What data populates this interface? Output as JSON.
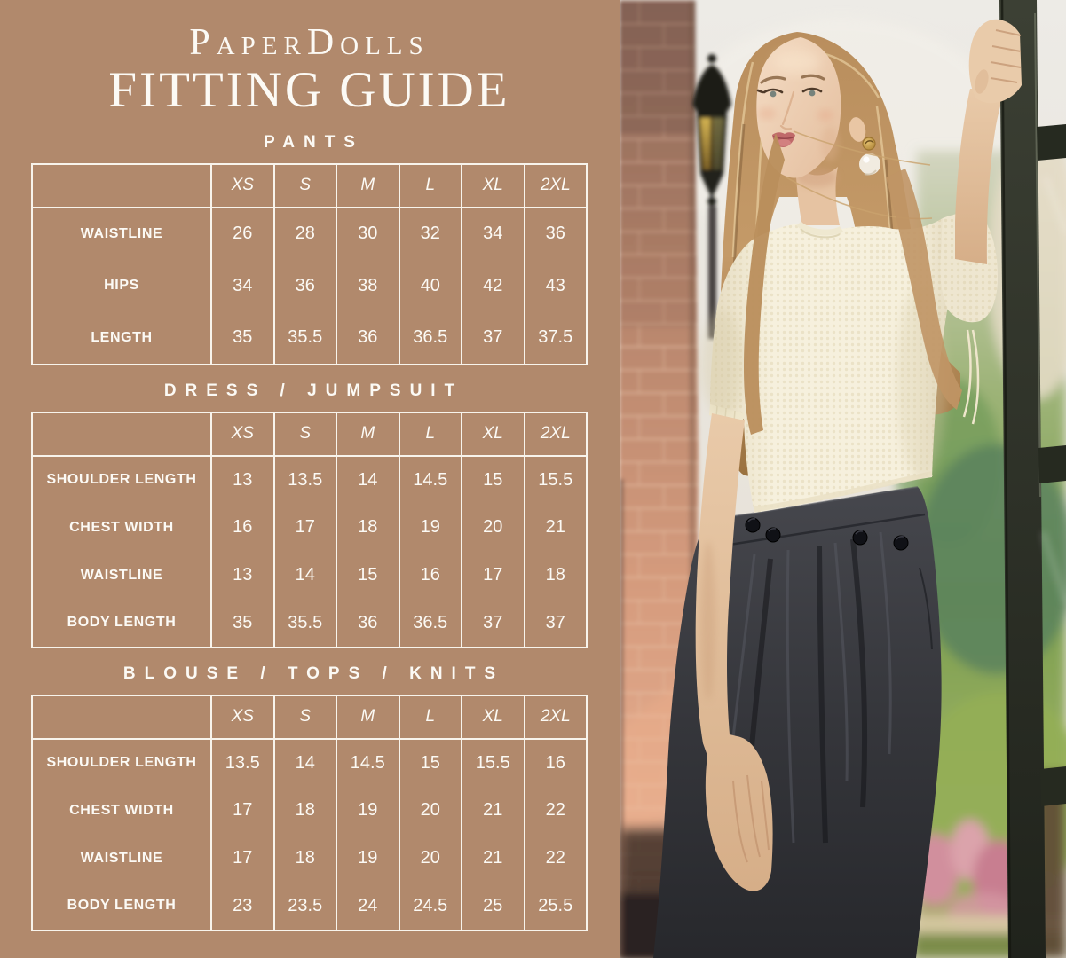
{
  "brand": "PaperDolls",
  "title": "FITTING GUIDE",
  "sizes": [
    "XS",
    "S",
    "M",
    "L",
    "XL",
    "2XL"
  ],
  "sections": [
    {
      "heading": "PANTS",
      "rows": [
        {
          "label": "WAISTLINE",
          "values": [
            "26",
            "28",
            "30",
            "32",
            "34",
            "36"
          ]
        },
        {
          "label": "HIPS",
          "values": [
            "34",
            "36",
            "38",
            "40",
            "42",
            "43"
          ]
        },
        {
          "label": "LENGTH",
          "values": [
            "35",
            "35.5",
            "36",
            "36.5",
            "37",
            "37.5"
          ]
        }
      ]
    },
    {
      "heading": "DRESS / JUMPSUIT",
      "rows": [
        {
          "label": "SHOULDER LENGTH",
          "values": [
            "13",
            "13.5",
            "14",
            "14.5",
            "15",
            "15.5"
          ]
        },
        {
          "label": "CHEST WIDTH",
          "values": [
            "16",
            "17",
            "18",
            "19",
            "20",
            "21"
          ]
        },
        {
          "label": "WAISTLINE",
          "values": [
            "13",
            "14",
            "15",
            "16",
            "17",
            "18"
          ]
        },
        {
          "label": "BODY LENGTH",
          "values": [
            "35",
            "35.5",
            "36",
            "36.5",
            "37",
            "37"
          ]
        }
      ]
    },
    {
      "heading": "BLOUSE / TOPS / KNITS",
      "rows": [
        {
          "label": "SHOULDER LENGTH",
          "values": [
            "13.5",
            "14",
            "14.5",
            "15",
            "15.5",
            "16"
          ]
        },
        {
          "label": "CHEST WIDTH",
          "values": [
            "17",
            "18",
            "19",
            "20",
            "21",
            "22"
          ]
        },
        {
          "label": "WAISTLINE",
          "values": [
            "17",
            "18",
            "19",
            "20",
            "21",
            "22"
          ]
        },
        {
          "label": "BODY LENGTH",
          "values": [
            "23",
            "23.5",
            "24",
            "24.5",
            "25",
            "25.5"
          ]
        }
      ]
    }
  ],
  "colors": {
    "background": "#b1896c",
    "text": "#fcfaf5",
    "table_border": "#f8f4ec"
  }
}
